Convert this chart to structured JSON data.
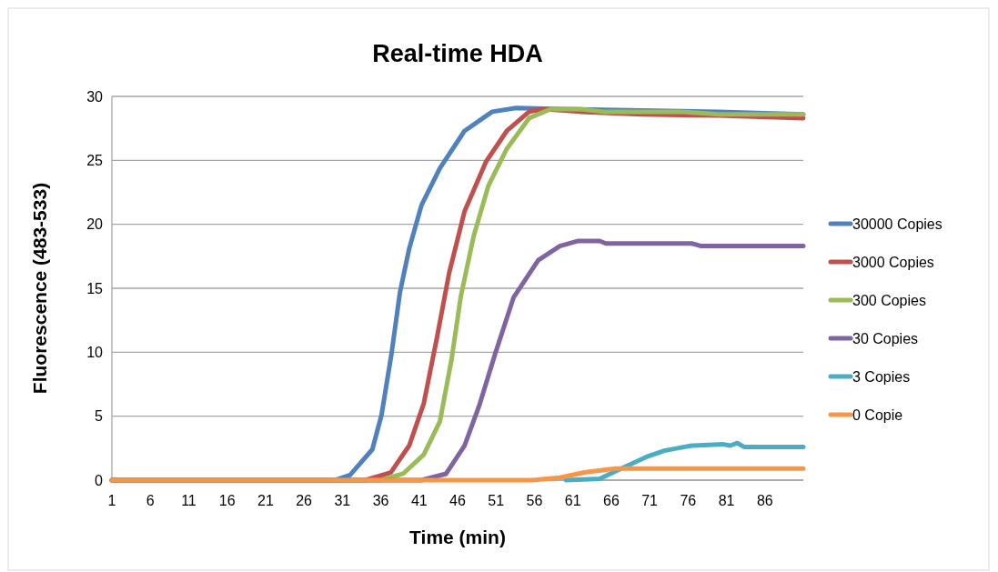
{
  "chart_data": {
    "type": "line",
    "title": "Real-time HDA",
    "xlabel": "Time (min)",
    "ylabel": "Fluorescence (483-533)",
    "xlim": [
      1,
      91
    ],
    "xticks": [
      1,
      6,
      11,
      16,
      21,
      26,
      31,
      36,
      41,
      46,
      51,
      56,
      61,
      66,
      71,
      76,
      81,
      86
    ],
    "ylim": [
      0,
      30
    ],
    "yticks": [
      0,
      5,
      10,
      15,
      20,
      25,
      30
    ],
    "grid": "y",
    "legend": "right",
    "marker": "none",
    "line_style": "solid",
    "series": [
      {
        "name": "30000 Copies",
        "color": "#4f81bd",
        "x": [
          1,
          30,
          32,
          34.9,
          36.1,
          37.4,
          38.5,
          39.7,
          41.3,
          43.7,
          46.9,
          50.5,
          53.6,
          60,
          70,
          80,
          91
        ],
        "values": [
          0,
          0,
          0.4,
          2.4,
          5.1,
          9.9,
          14.7,
          18.1,
          21.5,
          24.4,
          27.3,
          28.8,
          29.1,
          29.0,
          28.9,
          28.8,
          28.6
        ]
      },
      {
        "name": "3000 Copies",
        "color": "#c0504d",
        "x": [
          1,
          34,
          37.3,
          39.7,
          41.6,
          43.3,
          44.9,
          46.9,
          49.7,
          52.4,
          55.3,
          57.2,
          62,
          70,
          80,
          91
        ],
        "values": [
          0,
          0,
          0.6,
          2.7,
          6.0,
          11.1,
          16.2,
          21.0,
          24.9,
          27.3,
          28.8,
          29.0,
          28.8,
          28.6,
          28.5,
          28.3
        ]
      },
      {
        "name": "300 Copies",
        "color": "#9bbb59",
        "x": [
          1,
          36,
          38.9,
          41.6,
          43.7,
          45.2,
          46.4,
          48.1,
          50.0,
          52.4,
          55.3,
          58.1,
          62,
          65,
          75,
          80,
          91
        ],
        "values": [
          0,
          0,
          0.5,
          2.0,
          4.6,
          9.4,
          14.3,
          19.1,
          23.0,
          25.9,
          28.3,
          29.0,
          29.0,
          28.8,
          28.8,
          28.6,
          28.6
        ]
      },
      {
        "name": "30 Copies",
        "color": "#8064a2",
        "x": [
          1,
          41.3,
          44.5,
          46.9,
          48.8,
          50.9,
          53.3,
          56.5,
          59.3,
          61.7,
          64.5,
          65.3,
          76.5,
          77.7,
          91
        ],
        "values": [
          0,
          0,
          0.5,
          2.7,
          5.8,
          9.9,
          14.3,
          17.2,
          18.3,
          18.7,
          18.7,
          18.5,
          18.5,
          18.3,
          18.3
        ]
      },
      {
        "name": "3 Copies",
        "color": "#4bacc6",
        "x": [
          60.1,
          64.5,
          67.3,
          70.5,
          72.9,
          74.6,
          76.5,
          80.6,
          81.5,
          82.4,
          83.3,
          91
        ],
        "values": [
          0,
          0.1,
          0.9,
          1.8,
          2.3,
          2.5,
          2.7,
          2.8,
          2.7,
          2.9,
          2.6,
          2.6
        ]
      },
      {
        "name": "0 Copie",
        "color": "#f79646",
        "x": [
          1,
          55.7,
          59.3,
          62.5,
          66.5,
          69.3,
          91
        ],
        "values": [
          0,
          0,
          0.2,
          0.6,
          0.9,
          0.9,
          0.9
        ]
      }
    ]
  }
}
